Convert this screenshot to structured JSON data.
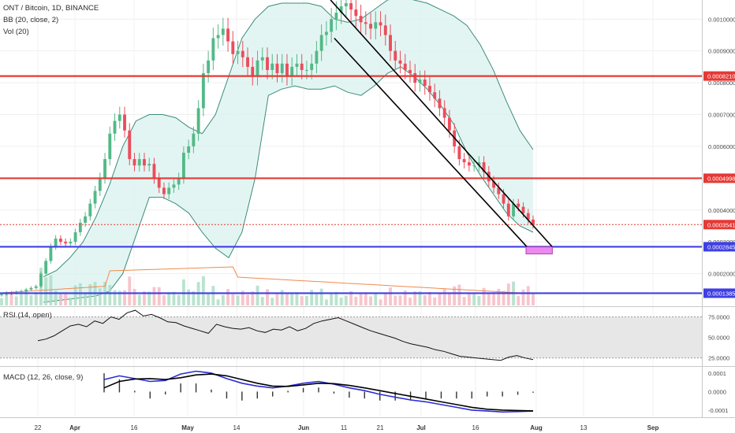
{
  "header": {
    "symbol_line": "ONT / Bitcoin, 1D, BINANCE",
    "bb_line": "BB (20, close, 2)",
    "vol_line": "Vol (20)"
  },
  "panes": {
    "rsi_label": "RSI (14, open)",
    "macd_label": "MACD (12, 26, close, 9)"
  },
  "colors": {
    "bull": "#53b987",
    "bear": "#eb4d5c",
    "bb_band": "#3c8c78",
    "bb_fill": "#d9f2ef",
    "resistance": "#e53935",
    "support": "#3f3fe6",
    "target_zone": "#ee88ee",
    "macd_line": "#2b2bd6",
    "signal_line": "#000000",
    "vol_ma": "#f08a4b"
  },
  "chart_data": [
    {
      "type": "candlestick",
      "title": "ONT / Bitcoin, 1D, BINANCE",
      "y_ticks": [
        "0.0010000",
        "0.0009000",
        "0.0008000",
        "0.0007000",
        "0.0006000",
        "0.0005000",
        "0.0004000",
        "0.0003000",
        "0.0002000",
        "0.0001000"
      ],
      "x_ticks": [
        "22",
        "Apr",
        "16",
        "May",
        "14",
        "Jun",
        "11",
        "21",
        "Jul",
        "16",
        "Aug",
        "13",
        "Sep"
      ],
      "ylim": [
        0.0001,
        0.00106
      ],
      "price_labels": [
        {
          "text": "0.0008210",
          "value": 0.000821,
          "color": "#e53935",
          "kind": "horizontal-resistance"
        },
        {
          "text": "0.0004998",
          "value": 0.0004998,
          "color": "#e53935",
          "kind": "horizontal-resistance"
        },
        {
          "text": "0.0003541",
          "value": 0.0003541,
          "color": "#e53935",
          "kind": "last-price"
        },
        {
          "text": "0.0002845",
          "value": 0.0002845,
          "color": "#3f3fe6",
          "kind": "horizontal-support"
        },
        {
          "text": "0.0001385",
          "value": 0.0001385,
          "color": "#3f3fe6",
          "kind": "horizontal-support"
        }
      ],
      "close_series": [
        0.000135,
        0.00014,
        0.000138,
        0.000142,
        0.000145,
        0.00015,
        0.000155,
        0.00016,
        0.0002,
        0.00024,
        0.000285,
        0.00031,
        0.0003,
        0.000295,
        0.0003,
        0.00033,
        0.00036,
        0.00038,
        0.00042,
        0.00046,
        0.0005,
        0.00056,
        0.00064,
        0.00068,
        0.0007,
        0.00065,
        0.00056,
        0.00054,
        0.00056,
        0.00054,
        0.000545,
        0.0005,
        0.00047,
        0.00045,
        0.00047,
        0.00048,
        0.0005,
        0.00058,
        0.0006,
        0.00064,
        0.00072,
        0.00083,
        0.00087,
        0.00094,
        0.00095,
        0.00097,
        0.00093,
        0.00089,
        0.0009,
        0.00088,
        0.00085,
        0.00082,
        0.00087,
        0.00088,
        0.00084,
        0.00086,
        0.00083,
        0.00086,
        0.00082,
        0.00085,
        0.00086,
        0.00084,
        0.00084,
        0.00086,
        0.0009,
        0.00095,
        0.00096,
        0.001,
        0.00102,
        0.00104,
        0.00105,
        0.00103,
        0.00101,
        0.00099,
        0.000985,
        0.00097,
        0.00099,
        0.00098,
        0.00095,
        0.0009,
        0.00087,
        0.00086,
        0.00084,
        0.00083,
        0.0008,
        0.00081,
        0.00079,
        0.00077,
        0.00075,
        0.00072,
        0.00069,
        0.00065,
        0.0006,
        0.00056,
        0.00055,
        0.00054,
        0.00054,
        0.00055,
        0.00052,
        0.00049,
        0.00047,
        0.00045,
        0.00042,
        0.00038,
        0.00042,
        0.00041,
        0.00039,
        0.00037,
        0.000354
      ],
      "bb_upper": [
        0.00019,
        0.00021,
        0.00025,
        0.0003,
        0.00038,
        0.00048,
        0.0006,
        0.00068,
        0.0007,
        0.0007,
        0.00069,
        0.00066,
        0.00064,
        0.0007,
        0.00082,
        0.00094,
        0.001,
        0.00104,
        0.00105,
        0.00105,
        0.00105,
        0.00104,
        0.001,
        0.00099,
        0.001,
        0.00103,
        0.00106,
        0.00107,
        0.00106,
        0.00105,
        0.00103,
        0.00101,
        0.00098,
        0.00092,
        0.00084,
        0.00074,
        0.00065,
        0.00059
      ],
      "bb_lower": [
        0.00011,
        0.000115,
        0.00012,
        0.000125,
        0.00013,
        0.000145,
        0.0002,
        0.00032,
        0.00044,
        0.00044,
        0.00042,
        0.00039,
        0.00033,
        0.00028,
        0.00025,
        0.00033,
        0.0005,
        0.00076,
        0.00078,
        0.00079,
        0.00078,
        0.00078,
        0.00079,
        0.00077,
        0.00076,
        0.00079,
        0.00083,
        0.00085,
        0.00082,
        0.00078,
        0.00073,
        0.00067,
        0.00058,
        0.00051,
        0.00045,
        0.00039,
        0.00035,
        0.00033
      ],
      "descending_channel": {
        "upper": {
          "from_date": "Jun 8",
          "from_value": 0.00106,
          "to_date": "Aug 6",
          "to_value": 0.000284
        },
        "lower": {
          "from_date": "Jun 9",
          "from_value": 0.00094,
          "to_date": "Aug 1",
          "to_value": 0.000262
        }
      },
      "target_box": {
        "from_date": "Jul 30",
        "to_date": "Aug 6",
        "value_low": 0.000262,
        "value_high": 0.000284
      }
    },
    {
      "type": "line",
      "title": "RSI (14, open)",
      "y_ticks": [
        "75.0000",
        "50.0000",
        "25.0000"
      ],
      "ylim": [
        18,
        86
      ],
      "values": [
        46,
        48,
        52,
        58,
        64,
        66,
        63,
        70,
        67,
        75,
        72,
        80,
        83,
        76,
        78,
        74,
        69,
        68,
        64,
        61,
        58,
        55,
        66,
        63,
        61,
        60,
        62,
        58,
        56,
        60,
        59,
        63,
        58,
        61,
        67,
        70,
        72,
        74,
        70,
        66,
        62,
        58,
        55,
        52,
        49,
        45,
        42,
        40,
        38,
        35,
        33,
        30,
        27,
        26,
        25,
        24,
        23,
        22,
        26,
        28,
        25,
        23
      ]
    },
    {
      "type": "line",
      "title": "MACD (12, 26, close, 9)",
      "y_ticks": [
        "0.0001",
        "0.0000",
        "-0.0001"
      ],
      "ylim": [
        -0.00013,
        0.000125
      ],
      "series": [
        {
          "name": "MACD",
          "values": [
            6.5e-05,
            8.5e-05,
            7e-05,
            5.5e-05,
            6e-05,
            9.5e-05,
            0.00011,
            0.0001,
            7e-05,
            4.5e-05,
            3e-05,
            2e-05,
            3e-05,
            4.5e-05,
            5.5e-05,
            4e-05,
            2e-05,
            5e-06,
            -1.5e-05,
            -3e-05,
            -4.5e-05,
            -5.5e-05,
            -7e-05,
            -8.5e-05,
            -0.0001,
            -0.000105,
            -0.00011,
            -0.000108,
            -0.000105
          ]
        },
        {
          "name": "Signal",
          "values": [
            2e-05,
            5.5e-05,
            6.8e-05,
            7e-05,
            6.5e-05,
            7.5e-05,
            9e-05,
            9.5e-05,
            8.5e-05,
            6.5e-05,
            4.5e-05,
            3e-05,
            2.8e-05,
            3.6e-05,
            4.5e-05,
            4.3e-05,
            3.3e-05,
            2e-05,
            5e-06,
            -1e-05,
            -2.5e-05,
            -4e-05,
            -5.5e-05,
            -7e-05,
            -8.5e-05,
            -9.5e-05,
            -0.0001,
            -0.000102,
            -0.000104
          ]
        }
      ]
    }
  ]
}
